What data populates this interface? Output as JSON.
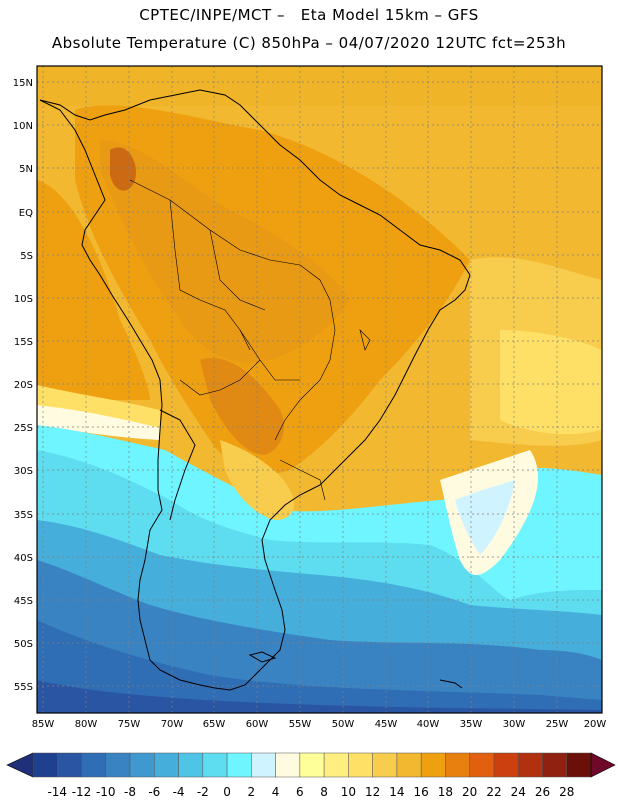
{
  "header": {
    "line1": "CPTEC/INPE/MCT –   Eta Model 15km – GFS",
    "line2": "Absolute Temperature (C) 850hPa – 04/07/2020 12UTC fct=253h"
  },
  "map": {
    "lon_labels": [
      "85W",
      "80W",
      "75W",
      "70W",
      "65W",
      "60W",
      "55W",
      "50W",
      "45W",
      "40W",
      "35W",
      "30W",
      "25W",
      "20W"
    ],
    "lat_labels": [
      "15N",
      "10N",
      "5N",
      "EQ",
      "5S",
      "10S",
      "15S",
      "20S",
      "25S",
      "30S",
      "35S",
      "40S",
      "45S",
      "50S",
      "55S"
    ]
  },
  "colorbar": {
    "labels": [
      "-14",
      "-12",
      "-10",
      "-8",
      "-6",
      "-4",
      "-2",
      "0",
      "2",
      "4",
      "6",
      "8",
      "10",
      "12",
      "14",
      "16",
      "18",
      "20",
      "22",
      "24",
      "26",
      "28"
    ],
    "colors": [
      "#1f3f8f",
      "#2a55a3",
      "#2f6db5",
      "#3a83c3",
      "#3f98cf",
      "#45aedb",
      "#4fc5e6",
      "#5edcf0",
      "#6ff5ff",
      "#d0f4ff",
      "#fffbe0",
      "#ffff99",
      "#ffef80",
      "#ffe066",
      "#f8cc4c",
      "#f2b830",
      "#eea010",
      "#e88010",
      "#e06010",
      "#cc4010",
      "#b03010",
      "#902010",
      "#6b1008"
    ],
    "left_arrow_color": "#1f2f7a",
    "right_arrow_color": "#70082a"
  }
}
